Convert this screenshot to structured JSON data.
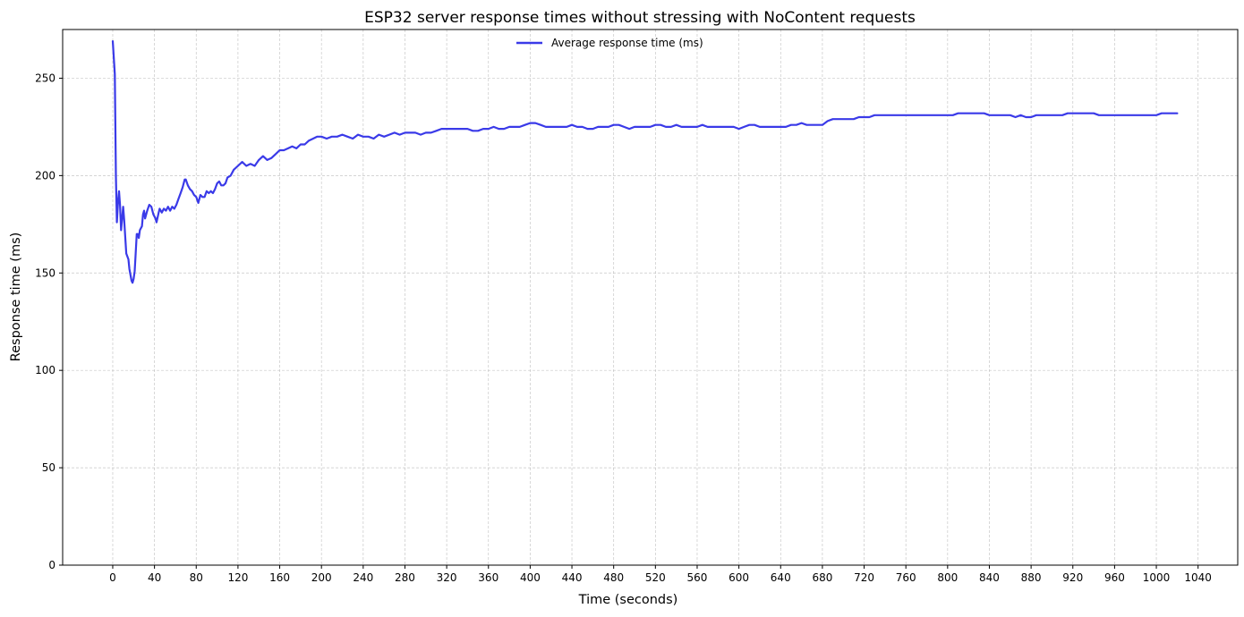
{
  "chart_data": {
    "type": "line",
    "title": "ESP32 server response times without stressing with NoContent requests",
    "xlabel": "Time (seconds)",
    "ylabel": "Response time (ms)",
    "xlim": [
      -48,
      1078
    ],
    "ylim": [
      0,
      275
    ],
    "xticks": [
      0,
      40,
      80,
      120,
      160,
      200,
      240,
      280,
      320,
      360,
      400,
      440,
      480,
      520,
      560,
      600,
      640,
      680,
      720,
      760,
      800,
      840,
      880,
      920,
      960,
      1000,
      1040
    ],
    "yticks": [
      0,
      50,
      100,
      150,
      200,
      250
    ],
    "grid": true,
    "legend": "upper-center",
    "series": [
      {
        "name": "Average response time (ms)",
        "color": "#3a3ae8",
        "points": [
          [
            0,
            269
          ],
          [
            2,
            252
          ],
          [
            3,
            200
          ],
          [
            4,
            176
          ],
          [
            5,
            186
          ],
          [
            6,
            192
          ],
          [
            7,
            185
          ],
          [
            8,
            172
          ],
          [
            9,
            178
          ],
          [
            10,
            184
          ],
          [
            11,
            177
          ],
          [
            12,
            168
          ],
          [
            13,
            160
          ],
          [
            15,
            157
          ],
          [
            16,
            152
          ],
          [
            18,
            146
          ],
          [
            19,
            145
          ],
          [
            20,
            147
          ],
          [
            21,
            151
          ],
          [
            22,
            160
          ],
          [
            23,
            170
          ],
          [
            24,
            170
          ],
          [
            25,
            168
          ],
          [
            26,
            172
          ],
          [
            28,
            174
          ],
          [
            29,
            180
          ],
          [
            30,
            182
          ],
          [
            31,
            178
          ],
          [
            33,
            182
          ],
          [
            35,
            185
          ],
          [
            37,
            184
          ],
          [
            39,
            180
          ],
          [
            41,
            178
          ],
          [
            42,
            176
          ],
          [
            44,
            181
          ],
          [
            45,
            183
          ],
          [
            47,
            181
          ],
          [
            49,
            183
          ],
          [
            51,
            182
          ],
          [
            53,
            184
          ],
          [
            55,
            182
          ],
          [
            57,
            184
          ],
          [
            59,
            183
          ],
          [
            61,
            185
          ],
          [
            63,
            188
          ],
          [
            65,
            191
          ],
          [
            67,
            194
          ],
          [
            69,
            198
          ],
          [
            70,
            198
          ],
          [
            72,
            195
          ],
          [
            74,
            193
          ],
          [
            76,
            192
          ],
          [
            78,
            190
          ],
          [
            80,
            189
          ],
          [
            82,
            186
          ],
          [
            84,
            190
          ],
          [
            86,
            189
          ],
          [
            88,
            189
          ],
          [
            90,
            192
          ],
          [
            92,
            191
          ],
          [
            94,
            192
          ],
          [
            96,
            191
          ],
          [
            98,
            193
          ],
          [
            100,
            196
          ],
          [
            102,
            197
          ],
          [
            104,
            195
          ],
          [
            106,
            195
          ],
          [
            108,
            196
          ],
          [
            110,
            199
          ],
          [
            113,
            200
          ],
          [
            116,
            203
          ],
          [
            120,
            205
          ],
          [
            124,
            207
          ],
          [
            128,
            205
          ],
          [
            132,
            206
          ],
          [
            136,
            205
          ],
          [
            140,
            208
          ],
          [
            144,
            210
          ],
          [
            148,
            208
          ],
          [
            152,
            209
          ],
          [
            156,
            211
          ],
          [
            160,
            213
          ],
          [
            164,
            213
          ],
          [
            168,
            214
          ],
          [
            172,
            215
          ],
          [
            176,
            214
          ],
          [
            180,
            216
          ],
          [
            184,
            216
          ],
          [
            188,
            218
          ],
          [
            192,
            219
          ],
          [
            196,
            220
          ],
          [
            200,
            220
          ],
          [
            205,
            219
          ],
          [
            210,
            220
          ],
          [
            215,
            220
          ],
          [
            220,
            221
          ],
          [
            225,
            220
          ],
          [
            230,
            219
          ],
          [
            235,
            221
          ],
          [
            240,
            220
          ],
          [
            245,
            220
          ],
          [
            250,
            219
          ],
          [
            255,
            221
          ],
          [
            260,
            220
          ],
          [
            265,
            221
          ],
          [
            270,
            222
          ],
          [
            275,
            221
          ],
          [
            280,
            222
          ],
          [
            285,
            222
          ],
          [
            290,
            222
          ],
          [
            295,
            221
          ],
          [
            300,
            222
          ],
          [
            305,
            222
          ],
          [
            310,
            223
          ],
          [
            315,
            224
          ],
          [
            320,
            224
          ],
          [
            325,
            224
          ],
          [
            330,
            224
          ],
          [
            335,
            224
          ],
          [
            340,
            224
          ],
          [
            345,
            223
          ],
          [
            350,
            223
          ],
          [
            355,
            224
          ],
          [
            360,
            224
          ],
          [
            365,
            225
          ],
          [
            370,
            224
          ],
          [
            375,
            224
          ],
          [
            380,
            225
          ],
          [
            385,
            225
          ],
          [
            390,
            225
          ],
          [
            395,
            226
          ],
          [
            400,
            227
          ],
          [
            405,
            227
          ],
          [
            410,
            226
          ],
          [
            415,
            225
          ],
          [
            420,
            225
          ],
          [
            425,
            225
          ],
          [
            430,
            225
          ],
          [
            435,
            225
          ],
          [
            440,
            226
          ],
          [
            445,
            225
          ],
          [
            450,
            225
          ],
          [
            455,
            224
          ],
          [
            460,
            224
          ],
          [
            465,
            225
          ],
          [
            470,
            225
          ],
          [
            475,
            225
          ],
          [
            480,
            226
          ],
          [
            485,
            226
          ],
          [
            490,
            225
          ],
          [
            495,
            224
          ],
          [
            500,
            225
          ],
          [
            505,
            225
          ],
          [
            510,
            225
          ],
          [
            515,
            225
          ],
          [
            520,
            226
          ],
          [
            525,
            226
          ],
          [
            530,
            225
          ],
          [
            535,
            225
          ],
          [
            540,
            226
          ],
          [
            545,
            225
          ],
          [
            550,
            225
          ],
          [
            555,
            225
          ],
          [
            560,
            225
          ],
          [
            565,
            226
          ],
          [
            570,
            225
          ],
          [
            575,
            225
          ],
          [
            580,
            225
          ],
          [
            585,
            225
          ],
          [
            590,
            225
          ],
          [
            595,
            225
          ],
          [
            600,
            224
          ],
          [
            605,
            225
          ],
          [
            610,
            226
          ],
          [
            615,
            226
          ],
          [
            620,
            225
          ],
          [
            625,
            225
          ],
          [
            630,
            225
          ],
          [
            635,
            225
          ],
          [
            640,
            225
          ],
          [
            645,
            225
          ],
          [
            650,
            226
          ],
          [
            655,
            226
          ],
          [
            660,
            227
          ],
          [
            665,
            226
          ],
          [
            670,
            226
          ],
          [
            675,
            226
          ],
          [
            680,
            226
          ],
          [
            685,
            228
          ],
          [
            690,
            229
          ],
          [
            695,
            229
          ],
          [
            700,
            229
          ],
          [
            705,
            229
          ],
          [
            710,
            229
          ],
          [
            715,
            230
          ],
          [
            720,
            230
          ],
          [
            725,
            230
          ],
          [
            730,
            231
          ],
          [
            735,
            231
          ],
          [
            740,
            231
          ],
          [
            745,
            231
          ],
          [
            750,
            231
          ],
          [
            755,
            231
          ],
          [
            760,
            231
          ],
          [
            765,
            231
          ],
          [
            770,
            231
          ],
          [
            775,
            231
          ],
          [
            780,
            231
          ],
          [
            785,
            231
          ],
          [
            790,
            231
          ],
          [
            795,
            231
          ],
          [
            800,
            231
          ],
          [
            805,
            231
          ],
          [
            810,
            232
          ],
          [
            815,
            232
          ],
          [
            820,
            232
          ],
          [
            825,
            232
          ],
          [
            830,
            232
          ],
          [
            835,
            232
          ],
          [
            840,
            231
          ],
          [
            845,
            231
          ],
          [
            850,
            231
          ],
          [
            855,
            231
          ],
          [
            860,
            231
          ],
          [
            865,
            230
          ],
          [
            870,
            231
          ],
          [
            875,
            230
          ],
          [
            880,
            230
          ],
          [
            885,
            231
          ],
          [
            890,
            231
          ],
          [
            895,
            231
          ],
          [
            900,
            231
          ],
          [
            905,
            231
          ],
          [
            910,
            231
          ],
          [
            915,
            232
          ],
          [
            920,
            232
          ],
          [
            925,
            232
          ],
          [
            930,
            232
          ],
          [
            935,
            232
          ],
          [
            940,
            232
          ],
          [
            945,
            231
          ],
          [
            950,
            231
          ],
          [
            955,
            231
          ],
          [
            960,
            231
          ],
          [
            965,
            231
          ],
          [
            970,
            231
          ],
          [
            975,
            231
          ],
          [
            980,
            231
          ],
          [
            985,
            231
          ],
          [
            990,
            231
          ],
          [
            995,
            231
          ],
          [
            1000,
            231
          ],
          [
            1005,
            232
          ],
          [
            1010,
            232
          ],
          [
            1015,
            232
          ],
          [
            1020,
            232
          ]
        ]
      }
    ]
  }
}
